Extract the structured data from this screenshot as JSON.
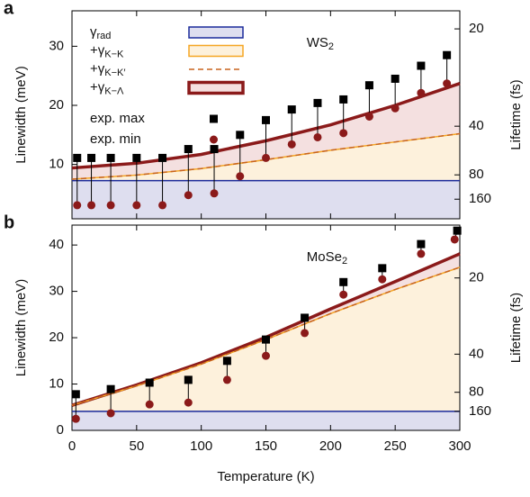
{
  "chart_data": [
    {
      "type": "line",
      "panel": "a",
      "annotation": "WS2",
      "ylabel": "Linewidth (meV)",
      "y2label": "Lifetime (fs)",
      "xlim": [
        0,
        300
      ],
      "xticks": [
        0,
        50,
        100,
        150,
        200,
        250,
        300
      ],
      "xtick_labels": false,
      "ylim": [
        0.8,
        36
      ],
      "yticks": [
        10,
        20,
        30
      ],
      "y2scale": "reciprocal",
      "y2lim": [
        822.5,
        18.3
      ],
      "y2ticks": [
        20,
        40,
        80,
        160
      ],
      "legend": "top-left",
      "drop_lines": true,
      "series": [
        {
          "name": "+γK−Λ",
          "color": "#8b1a1a",
          "fill": "#f4e0e0",
          "width": 3.5,
          "x": [
            0,
            50,
            100,
            150,
            200,
            250,
            300
          ],
          "values": [
            9.4,
            10.2,
            11.7,
            14.0,
            16.7,
            20.0,
            23.7
          ]
        },
        {
          "name": "+γK−K",
          "color": "#f5a623",
          "fill": "#fdf1dc",
          "width": 1.5,
          "x": [
            0,
            50,
            100,
            150,
            200,
            250,
            300
          ],
          "values": [
            7.5,
            8.2,
            9.3,
            10.8,
            12.4,
            13.8,
            15.2
          ]
        },
        {
          "name": "+γK−K′",
          "color": "#c8641e",
          "dash": true,
          "width": 1.5,
          "x": [
            0,
            50,
            100,
            150,
            200,
            250,
            300
          ],
          "values": [
            7.5,
            8.2,
            9.3,
            10.8,
            12.4,
            13.8,
            15.2
          ]
        },
        {
          "name": "γrad",
          "color": "#1a2a9a",
          "fill": "#dedeef",
          "width": 1.5,
          "x": [
            0,
            300
          ],
          "values": [
            7.25,
            7.25
          ]
        },
        {
          "name": "exp. max",
          "marker": "square",
          "color": "#000000",
          "x": [
            4,
            15,
            30,
            50,
            70,
            90,
            110,
            130,
            150,
            170,
            190,
            210,
            230,
            250,
            270,
            290
          ],
          "values": [
            11.1,
            11.1,
            11.1,
            11.1,
            11.1,
            12.6,
            12.6,
            15.0,
            17.5,
            19.3,
            20.4,
            21.0,
            23.4,
            24.5,
            26.7,
            28.5
          ]
        },
        {
          "name": "exp. min",
          "marker": "circle",
          "color": "#8b1a1a",
          "x": [
            4,
            15,
            30,
            50,
            70,
            90,
            110,
            130,
            150,
            170,
            190,
            210,
            230,
            250,
            270,
            290
          ],
          "values": [
            3.1,
            3.1,
            3.1,
            3.1,
            3.1,
            4.8,
            5.1,
            8.0,
            11.1,
            13.4,
            14.6,
            15.3,
            18.1,
            19.5,
            22.1,
            23.7
          ]
        }
      ]
    },
    {
      "type": "line",
      "panel": "b",
      "annotation": "MoSe2",
      "ylabel": "Linewidth (meV)",
      "y2label": "Lifetime (fs)",
      "xlabel": "Temperature (K)",
      "xlim": [
        0,
        300
      ],
      "xticks": [
        0,
        50,
        100,
        150,
        200,
        250,
        300
      ],
      "xtick_labels": true,
      "ylim": [
        0,
        44.3
      ],
      "yticks": [
        0,
        10,
        20,
        30,
        40
      ],
      "y2scale": "reciprocal",
      "y2lim": [
        null,
        14.85
      ],
      "y2ticks": [
        20,
        40,
        80,
        160
      ],
      "drop_lines": true,
      "series": [
        {
          "color": "#8b1a1a",
          "fill": "#f4e0e0",
          "width": 3.5,
          "x": [
            0,
            50,
            100,
            150,
            200,
            250,
            300
          ],
          "values": [
            5.4,
            9.8,
            14.6,
            20.1,
            26.2,
            32.1,
            38.1
          ]
        },
        {
          "color": "#f5a623",
          "fill": "#fdf1dc",
          "width": 1.5,
          "x": [
            0,
            50,
            100,
            150,
            200,
            250,
            300
          ],
          "values": [
            5.4,
            9.6,
            14.3,
            19.6,
            25.2,
            30.4,
            35.2
          ]
        },
        {
          "color": "#c8641e",
          "dash": true,
          "width": 1.5,
          "x": [
            0,
            50,
            100,
            150,
            200,
            250,
            300
          ],
          "values": [
            5.4,
            9.6,
            14.3,
            19.6,
            25.2,
            30.4,
            35.2
          ]
        },
        {
          "color": "#1a2a9a",
          "fill": "#dedeef",
          "width": 1.5,
          "x": [
            0,
            300
          ],
          "values": [
            4.1,
            4.1
          ]
        },
        {
          "marker": "square",
          "color": "#000000",
          "x": [
            3,
            30,
            60,
            90,
            120,
            150,
            180,
            210,
            240,
            270,
            298
          ],
          "values": [
            7.8,
            8.9,
            10.3,
            10.9,
            15.0,
            19.6,
            24.3,
            32.0,
            35.0,
            40.2,
            43.1
          ]
        },
        {
          "marker": "circle",
          "color": "#8b1a1a",
          "x": [
            3,
            30,
            60,
            90,
            120,
            150,
            180,
            210,
            240,
            270,
            296
          ],
          "values": [
            2.5,
            3.7,
            5.6,
            6.0,
            10.9,
            16.1,
            21.0,
            29.3,
            32.6,
            38.1,
            41.2
          ]
        }
      ]
    }
  ]
}
